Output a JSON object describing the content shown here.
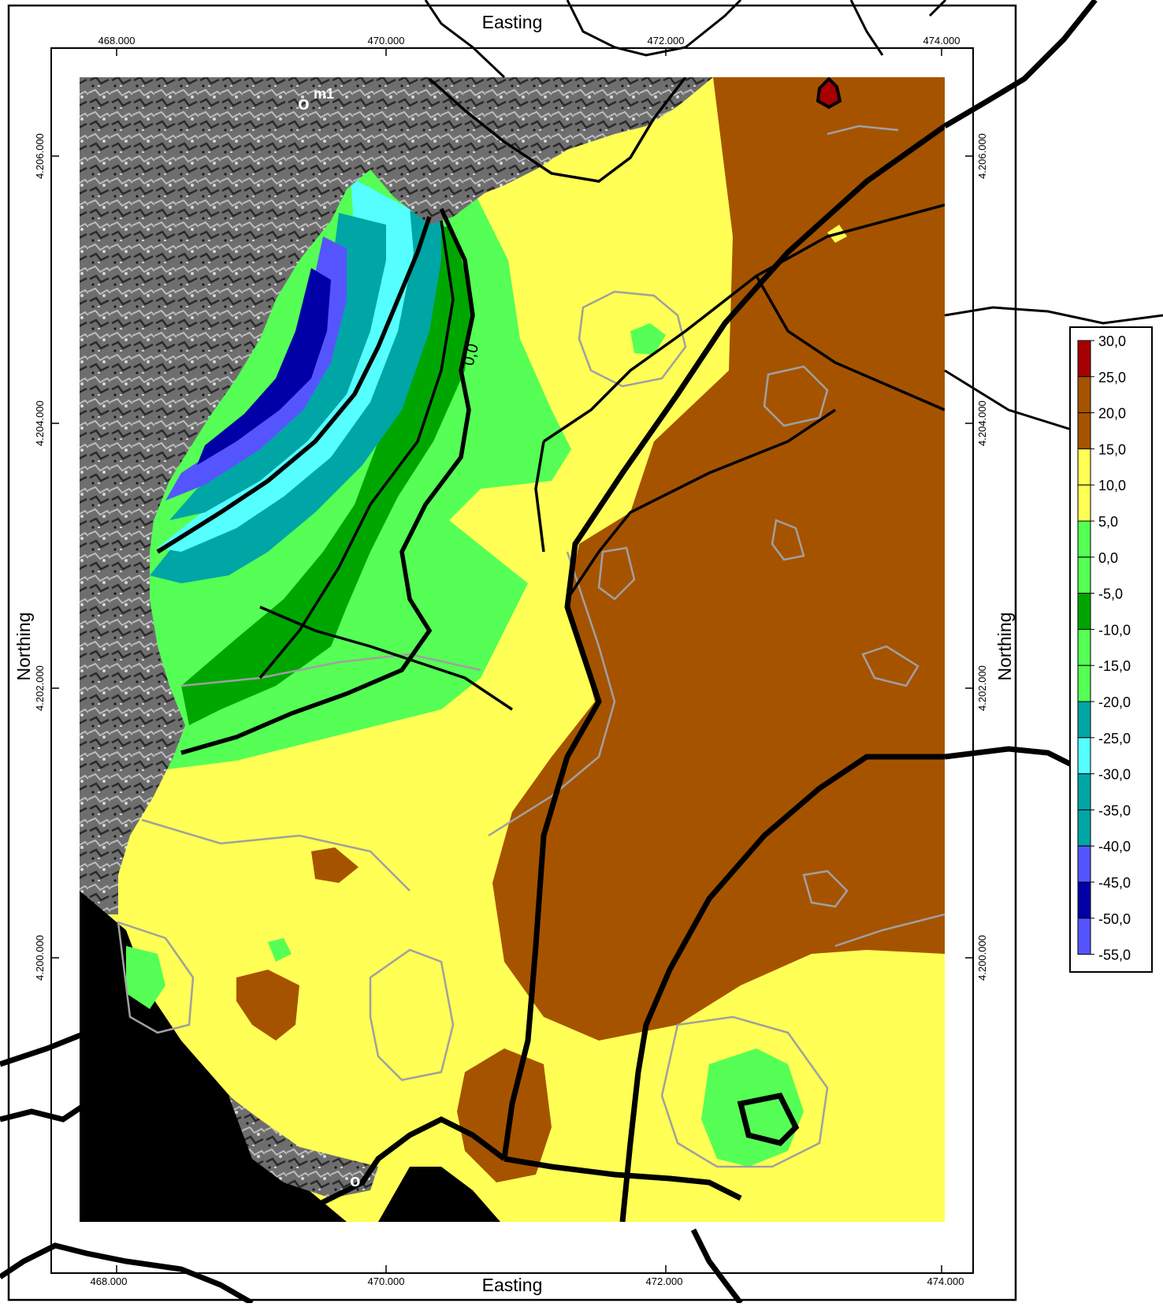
{
  "axes": {
    "top_title": "Easting",
    "bottom_title": "Easting",
    "left_title": "Northing",
    "right_title": "Northing",
    "x_ticks": [
      "468.000",
      "470.000",
      "472.000",
      "474.000"
    ],
    "y_ticks": [
      "4.206.000",
      "4.204.000",
      "4.202.000",
      "4.200.000"
    ]
  },
  "annotations": {
    "well_label": "m1",
    "contour_zero_label": "0,0"
  },
  "legend": {
    "items": [
      {
        "label": "30,0",
        "color": "#a60000"
      },
      {
        "label": "25,0",
        "color": "#a65300"
      },
      {
        "label": "20,0",
        "color": "#a65300"
      },
      {
        "label": "15,0",
        "color": "#ffff55"
      },
      {
        "label": "10,0",
        "color": "#ffff55"
      },
      {
        "label": "5,0",
        "color": "#55ff55"
      },
      {
        "label": "0,0",
        "color": "#55ff55"
      },
      {
        "label": "-5,0",
        "color": "#00a600"
      },
      {
        "label": "-10,0",
        "color": "#55ff55"
      },
      {
        "label": "-15,0",
        "color": "#55ff55"
      },
      {
        "label": "-20,0",
        "color": "#00a6a6"
      },
      {
        "label": "-25,0",
        "color": "#55ffff"
      },
      {
        "label": "-30,0",
        "color": "#00a6a6"
      },
      {
        "label": "-35,0",
        "color": "#00a6a6"
      },
      {
        "label": "-40,0",
        "color": "#5555ff"
      },
      {
        "label": "-45,0",
        "color": "#0000a6"
      },
      {
        "label": "-50,0",
        "color": "#5555ff"
      },
      {
        "label": "-55,0",
        "color": "#a600a6"
      }
    ]
  },
  "colors": {
    "brown": "#a65300",
    "yellow": "#ffff55",
    "light_green": "#55ff55",
    "dark_green": "#00a600",
    "teal": "#00a6a6",
    "cyan": "#55ffff",
    "blue": "#5555ff",
    "navy": "#0000a6",
    "dark_red": "#a60000",
    "terrain_grey": "#6e6e6e"
  }
}
